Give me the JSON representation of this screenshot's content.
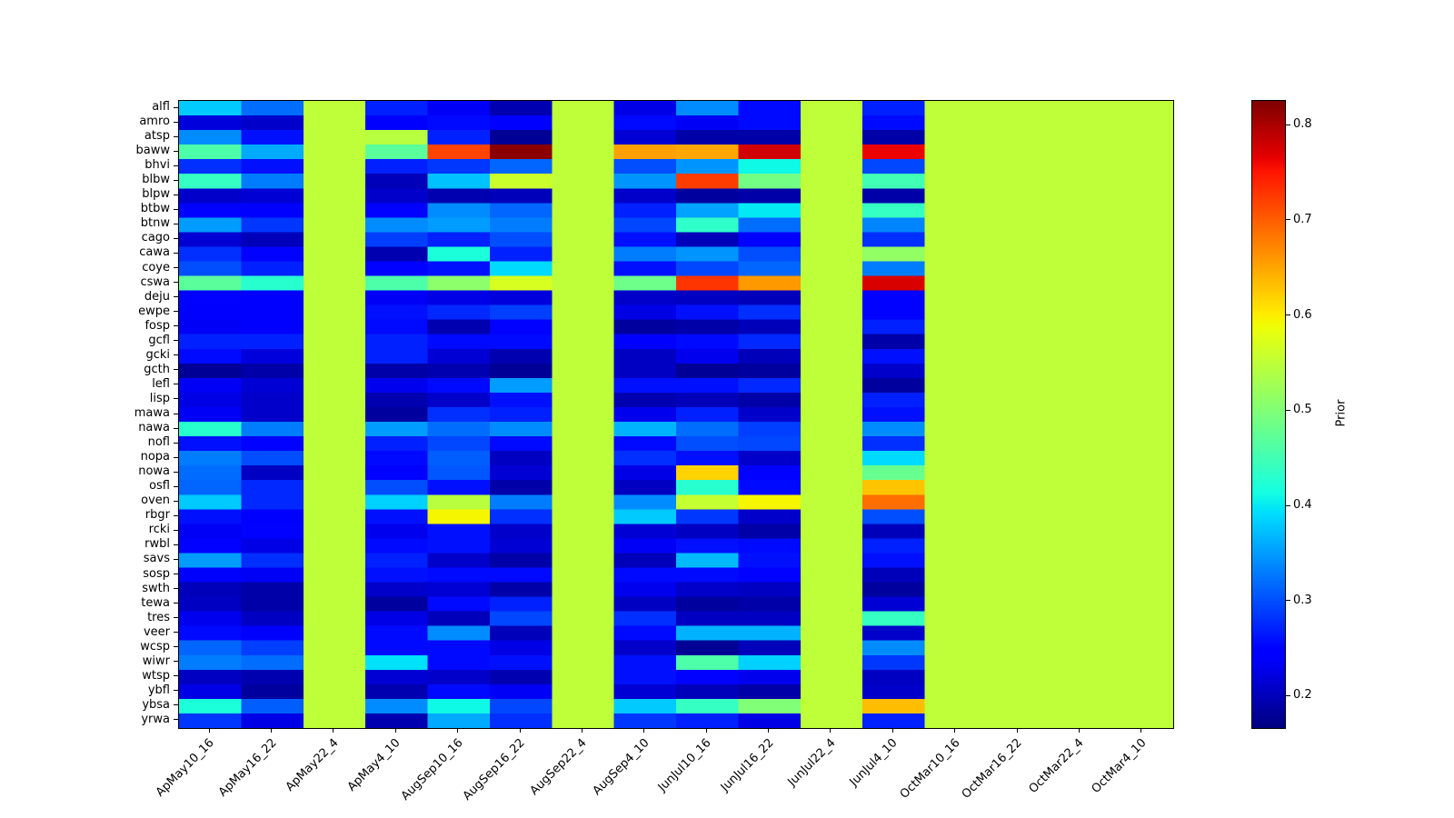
{
  "figure": {
    "background_color": "#ffffff",
    "text_color": "#000000",
    "title": ""
  },
  "chart_data": {
    "type": "heatmap",
    "title": "",
    "xlabel": "",
    "ylabel": "",
    "colormap": "jet",
    "vmin": 0.167,
    "vmax": 0.826,
    "grid": false,
    "colorbar": {
      "label": "Prior",
      "ticks": [
        0.2,
        0.3,
        0.4,
        0.5,
        0.6,
        0.7,
        0.8
      ],
      "position": "right"
    },
    "x_categories": [
      "ApMay10_16",
      "ApMay16_22",
      "ApMay22_4",
      "ApMay4_10",
      "AugSep10_16",
      "AugSep16_22",
      "AugSep22_4",
      "AugSep4_10",
      "JunJul10_16",
      "JunJul16_22",
      "JunJul22_4",
      "JunJul4_10",
      "OctMar10_16",
      "OctMar16_22",
      "OctMar22_4",
      "OctMar4_10"
    ],
    "y_categories": [
      "alfl",
      "amro",
      "atsp",
      "baww",
      "bhvi",
      "blbw",
      "blpw",
      "btbw",
      "btnw",
      "cago",
      "cawa",
      "coye",
      "cswa",
      "deju",
      "ewpe",
      "fosp",
      "gcfl",
      "gcki",
      "gcth",
      "lefl",
      "lisp",
      "mawa",
      "nawa",
      "nofl",
      "nopa",
      "nowa",
      "osfl",
      "oven",
      "rbgr",
      "rcki",
      "rwbl",
      "savs",
      "sosp",
      "swth",
      "tewa",
      "tres",
      "veer",
      "wcsp",
      "wiwr",
      "wtsp",
      "ybfl",
      "ybsa",
      "yrwa"
    ],
    "values": [
      [
        0.38,
        0.32,
        0.55,
        0.27,
        0.235,
        0.195,
        0.55,
        0.225,
        0.34,
        0.255,
        0.55,
        0.27,
        0.55,
        0.55,
        0.55,
        0.55
      ],
      [
        0.22,
        0.21,
        0.55,
        0.245,
        0.255,
        0.24,
        0.55,
        0.255,
        0.235,
        0.255,
        0.55,
        0.255,
        0.55,
        0.55,
        0.55,
        0.55
      ],
      [
        0.34,
        0.26,
        0.55,
        0.545,
        0.27,
        0.18,
        0.55,
        0.215,
        0.19,
        0.19,
        0.55,
        0.19,
        0.55,
        0.55,
        0.55,
        0.55
      ],
      [
        0.46,
        0.36,
        0.55,
        0.47,
        0.72,
        0.82,
        0.55,
        0.655,
        0.65,
        0.78,
        0.55,
        0.765,
        0.55,
        0.55,
        0.55,
        0.55
      ],
      [
        0.28,
        0.26,
        0.55,
        0.27,
        0.285,
        0.315,
        0.55,
        0.3,
        0.345,
        0.41,
        0.55,
        0.295,
        0.55,
        0.55,
        0.55,
        0.55
      ],
      [
        0.44,
        0.33,
        0.55,
        0.2,
        0.375,
        0.56,
        0.55,
        0.345,
        0.725,
        0.49,
        0.55,
        0.45,
        0.55,
        0.55,
        0.55,
        0.55
      ],
      [
        0.21,
        0.215,
        0.55,
        0.21,
        0.195,
        0.2,
        0.55,
        0.21,
        0.185,
        0.19,
        0.55,
        0.19,
        0.55,
        0.55,
        0.55,
        0.55
      ],
      [
        0.25,
        0.245,
        0.55,
        0.25,
        0.34,
        0.315,
        0.55,
        0.27,
        0.355,
        0.4,
        0.55,
        0.44,
        0.55,
        0.55,
        0.55,
        0.55
      ],
      [
        0.35,
        0.285,
        0.55,
        0.34,
        0.35,
        0.33,
        0.55,
        0.295,
        0.435,
        0.32,
        0.55,
        0.335,
        0.55,
        0.55,
        0.55,
        0.55
      ],
      [
        0.215,
        0.2,
        0.55,
        0.29,
        0.27,
        0.3,
        0.55,
        0.26,
        0.2,
        0.25,
        0.55,
        0.28,
        0.55,
        0.55,
        0.55,
        0.55
      ],
      [
        0.28,
        0.25,
        0.55,
        0.195,
        0.42,
        0.27,
        0.55,
        0.33,
        0.345,
        0.3,
        0.55,
        0.515,
        0.55,
        0.55,
        0.55,
        0.55
      ],
      [
        0.3,
        0.27,
        0.55,
        0.25,
        0.26,
        0.39,
        0.55,
        0.26,
        0.295,
        0.315,
        0.55,
        0.33,
        0.55,
        0.55,
        0.55,
        0.55
      ],
      [
        0.47,
        0.43,
        0.55,
        0.46,
        0.51,
        0.57,
        0.55,
        0.485,
        0.73,
        0.66,
        0.55,
        0.775,
        0.55,
        0.55,
        0.55,
        0.55
      ],
      [
        0.25,
        0.24,
        0.55,
        0.235,
        0.225,
        0.22,
        0.55,
        0.21,
        0.205,
        0.2,
        0.55,
        0.25,
        0.55,
        0.55,
        0.55,
        0.55
      ],
      [
        0.24,
        0.24,
        0.55,
        0.26,
        0.275,
        0.29,
        0.55,
        0.225,
        0.26,
        0.28,
        0.55,
        0.25,
        0.55,
        0.55,
        0.55,
        0.55
      ],
      [
        0.235,
        0.24,
        0.55,
        0.255,
        0.195,
        0.25,
        0.55,
        0.185,
        0.19,
        0.2,
        0.55,
        0.27,
        0.55,
        0.55,
        0.55,
        0.55
      ],
      [
        0.27,
        0.27,
        0.55,
        0.27,
        0.255,
        0.255,
        0.55,
        0.24,
        0.255,
        0.275,
        0.55,
        0.19,
        0.55,
        0.55,
        0.55,
        0.55
      ],
      [
        0.255,
        0.22,
        0.55,
        0.27,
        0.215,
        0.195,
        0.55,
        0.205,
        0.23,
        0.2,
        0.55,
        0.26,
        0.55,
        0.55,
        0.55,
        0.55
      ],
      [
        0.18,
        0.19,
        0.55,
        0.19,
        0.195,
        0.18,
        0.55,
        0.205,
        0.18,
        0.185,
        0.55,
        0.21,
        0.55,
        0.55,
        0.55,
        0.55
      ],
      [
        0.235,
        0.215,
        0.55,
        0.23,
        0.255,
        0.35,
        0.55,
        0.26,
        0.26,
        0.275,
        0.55,
        0.185,
        0.55,
        0.55,
        0.55,
        0.55
      ],
      [
        0.225,
        0.21,
        0.55,
        0.195,
        0.21,
        0.26,
        0.55,
        0.195,
        0.2,
        0.19,
        0.55,
        0.27,
        0.55,
        0.55,
        0.55,
        0.55
      ],
      [
        0.235,
        0.21,
        0.55,
        0.185,
        0.28,
        0.27,
        0.55,
        0.23,
        0.27,
        0.21,
        0.55,
        0.26,
        0.55,
        0.55,
        0.55,
        0.55
      ],
      [
        0.43,
        0.33,
        0.55,
        0.35,
        0.32,
        0.34,
        0.55,
        0.365,
        0.32,
        0.29,
        0.55,
        0.34,
        0.55,
        0.55,
        0.55,
        0.55
      ],
      [
        0.26,
        0.25,
        0.55,
        0.27,
        0.295,
        0.255,
        0.55,
        0.255,
        0.3,
        0.295,
        0.55,
        0.28,
        0.55,
        0.55,
        0.55,
        0.55
      ],
      [
        0.33,
        0.3,
        0.55,
        0.255,
        0.31,
        0.205,
        0.55,
        0.28,
        0.26,
        0.21,
        0.55,
        0.39,
        0.55,
        0.55,
        0.55,
        0.55
      ],
      [
        0.32,
        0.205,
        0.55,
        0.25,
        0.305,
        0.215,
        0.55,
        0.225,
        0.62,
        0.25,
        0.55,
        0.48,
        0.55,
        0.55,
        0.55,
        0.55
      ],
      [
        0.315,
        0.275,
        0.55,
        0.3,
        0.26,
        0.19,
        0.55,
        0.205,
        0.43,
        0.255,
        0.55,
        0.63,
        0.55,
        0.55,
        0.55,
        0.55
      ],
      [
        0.38,
        0.275,
        0.55,
        0.385,
        0.545,
        0.33,
        0.55,
        0.34,
        0.555,
        0.595,
        0.55,
        0.69,
        0.55,
        0.55,
        0.55,
        0.55
      ],
      [
        0.26,
        0.24,
        0.55,
        0.26,
        0.595,
        0.28,
        0.55,
        0.38,
        0.285,
        0.21,
        0.55,
        0.3,
        0.55,
        0.55,
        0.55,
        0.55
      ],
      [
        0.235,
        0.25,
        0.55,
        0.23,
        0.26,
        0.21,
        0.55,
        0.215,
        0.205,
        0.19,
        0.55,
        0.2,
        0.55,
        0.55,
        0.55,
        0.55
      ],
      [
        0.25,
        0.225,
        0.55,
        0.255,
        0.26,
        0.215,
        0.55,
        0.235,
        0.26,
        0.255,
        0.55,
        0.27,
        0.55,
        0.55,
        0.55,
        0.55
      ],
      [
        0.35,
        0.28,
        0.55,
        0.27,
        0.21,
        0.19,
        0.55,
        0.2,
        0.37,
        0.26,
        0.55,
        0.26,
        0.55,
        0.55,
        0.55,
        0.55
      ],
      [
        0.24,
        0.235,
        0.55,
        0.26,
        0.255,
        0.255,
        0.55,
        0.255,
        0.255,
        0.25,
        0.55,
        0.2,
        0.55,
        0.55,
        0.55,
        0.55
      ],
      [
        0.2,
        0.19,
        0.55,
        0.21,
        0.215,
        0.19,
        0.55,
        0.23,
        0.21,
        0.205,
        0.55,
        0.185,
        0.55,
        0.55,
        0.55,
        0.55
      ],
      [
        0.205,
        0.19,
        0.55,
        0.185,
        0.255,
        0.27,
        0.55,
        0.205,
        0.185,
        0.19,
        0.55,
        0.215,
        0.55,
        0.55,
        0.55,
        0.55
      ],
      [
        0.23,
        0.205,
        0.55,
        0.225,
        0.2,
        0.295,
        0.55,
        0.28,
        0.205,
        0.205,
        0.55,
        0.44,
        0.55,
        0.55,
        0.55,
        0.55
      ],
      [
        0.255,
        0.245,
        0.55,
        0.255,
        0.34,
        0.2,
        0.55,
        0.255,
        0.365,
        0.365,
        0.55,
        0.21,
        0.55,
        0.55,
        0.55,
        0.55
      ],
      [
        0.315,
        0.29,
        0.55,
        0.255,
        0.255,
        0.225,
        0.55,
        0.21,
        0.18,
        0.2,
        0.55,
        0.34,
        0.55,
        0.55,
        0.55,
        0.55
      ],
      [
        0.33,
        0.32,
        0.55,
        0.395,
        0.255,
        0.26,
        0.55,
        0.26,
        0.46,
        0.385,
        0.55,
        0.285,
        0.55,
        0.55,
        0.55,
        0.55
      ],
      [
        0.205,
        0.195,
        0.55,
        0.215,
        0.21,
        0.195,
        0.55,
        0.26,
        0.25,
        0.23,
        0.55,
        0.205,
        0.55,
        0.55,
        0.55,
        0.55
      ],
      [
        0.225,
        0.185,
        0.55,
        0.195,
        0.255,
        0.235,
        0.55,
        0.215,
        0.2,
        0.19,
        0.55,
        0.21,
        0.55,
        0.55,
        0.55,
        0.55
      ],
      [
        0.42,
        0.31,
        0.55,
        0.34,
        0.41,
        0.295,
        0.55,
        0.38,
        0.44,
        0.5,
        0.55,
        0.635,
        0.55,
        0.55,
        0.55,
        0.55
      ],
      [
        0.285,
        0.225,
        0.55,
        0.195,
        0.36,
        0.28,
        0.55,
        0.285,
        0.27,
        0.225,
        0.55,
        0.27,
        0.55,
        0.55,
        0.55,
        0.55
      ]
    ]
  }
}
